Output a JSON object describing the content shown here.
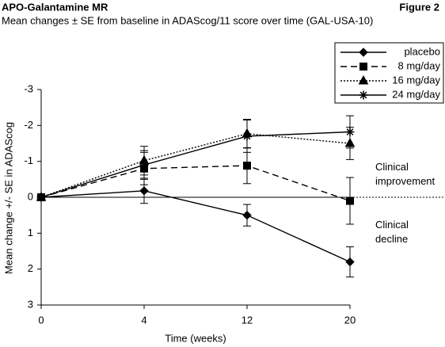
{
  "chart_data": {
    "type": "line",
    "title": "APO-Galantamine MR",
    "figure_label": "Figure 2",
    "subtitle": "Mean changes ± SE from baseline in ADAScog/11 score over time (GAL-USA-10)",
    "x_label": "Time (weeks)",
    "y_label": "Mean change +/- SE in ADAScog",
    "categories": [
      "0",
      "4",
      "12",
      "20"
    ],
    "ylim": [
      3,
      -3
    ],
    "yticks": [
      -3,
      -2,
      -1,
      0,
      1,
      2,
      3
    ],
    "hline": 0,
    "annotations": [
      "Clinical improvement",
      "Clinical decline"
    ],
    "series": [
      {
        "name": "placebo",
        "color": "#000000",
        "dash": "solid",
        "marker": "diamond",
        "values": [
          0,
          -0.18,
          0.5,
          1.8
        ],
        "errors": [
          0,
          0.35,
          0.3,
          0.42
        ]
      },
      {
        "name": "8 mg/day",
        "color": "#000000",
        "dash": "dashed",
        "marker": "square",
        "values": [
          0,
          -0.8,
          -0.88,
          0.1
        ],
        "errors": [
          0,
          0.45,
          0.5,
          0.65
        ]
      },
      {
        "name": "16 mg/day",
        "color": "#000000",
        "dash": "dotted",
        "marker": "triangle",
        "values": [
          0,
          -1.02,
          -1.77,
          -1.5
        ],
        "errors": [
          0,
          0.4,
          0.4,
          0.45
        ]
      },
      {
        "name": "24 mg/day",
        "color": "#000000",
        "dash": "solid",
        "marker": "star",
        "values": [
          0,
          -0.9,
          -1.7,
          -1.82
        ],
        "errors": [
          0,
          0.4,
          0.45,
          0.45
        ]
      }
    ]
  }
}
